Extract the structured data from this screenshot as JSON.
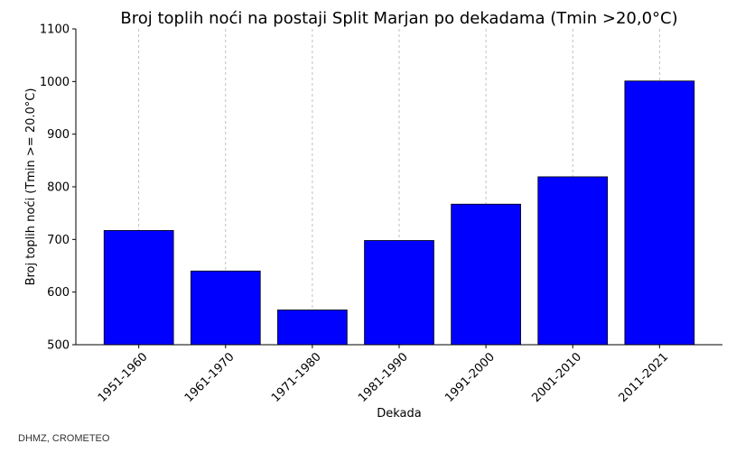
{
  "chart_data": {
    "type": "bar",
    "title": "Broj toplih noći na postaji Split Marjan po dekadama (Tmin >20,0°C)",
    "xlabel": "Dekada",
    "ylabel": "Broj toplih noći (Tmin >= 20.0°C)",
    "categories": [
      "1951-1960",
      "1961-1970",
      "1971-1980",
      "1981-1990",
      "1991-2000",
      "2001-2010",
      "2011-2021"
    ],
    "values": [
      717,
      640,
      566,
      698,
      767,
      819,
      1001
    ],
    "ylim": [
      500,
      1100
    ],
    "yticks": [
      500,
      600,
      700,
      800,
      900,
      1000,
      1100
    ],
    "grid": "vertical-dashed",
    "bar_color": "#0000ff",
    "bar_edge_color": "#000000",
    "grid_color": "#b0b0b0"
  },
  "source": "DHMZ, CROMETEO"
}
